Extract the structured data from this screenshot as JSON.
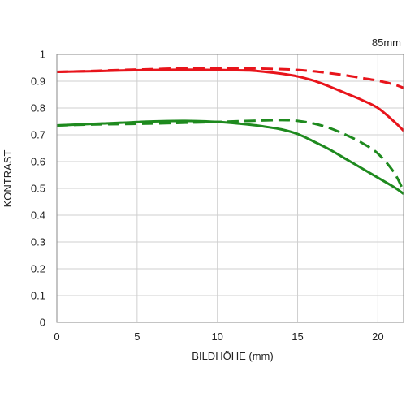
{
  "chart_data": {
    "type": "line",
    "title": "",
    "annotation": "85mm",
    "xlabel": "BILDHÖHE (mm)",
    "ylabel": "KONTRAST",
    "xlim": [
      0,
      21.6
    ],
    "ylim": [
      0,
      1
    ],
    "xticks": [
      0,
      5,
      10,
      15,
      20
    ],
    "yticks": [
      0,
      0.1,
      0.2,
      0.3,
      0.4,
      0.5,
      0.6,
      0.7,
      0.8,
      0.9,
      1
    ],
    "ytick_labels": [
      "0",
      "0.1",
      "0.2",
      "0.3",
      "0.4",
      "0.5",
      "0.6",
      "0.7",
      "0.8",
      "0.9",
      "1"
    ],
    "grid": true,
    "legend": "none",
    "series": [
      {
        "color": "#e8141b",
        "dash": "solid",
        "x": [
          0,
          2,
          4,
          6,
          8,
          10,
          12,
          13,
          14,
          15,
          16,
          17,
          18,
          19,
          20,
          21,
          21.6
        ],
        "y": [
          0.935,
          0.937,
          0.94,
          0.942,
          0.943,
          0.942,
          0.94,
          0.935,
          0.928,
          0.918,
          0.902,
          0.88,
          0.855,
          0.83,
          0.8,
          0.75,
          0.715
        ]
      },
      {
        "color": "#e8141b",
        "dash": "dashed",
        "x": [
          0,
          2,
          4,
          6,
          8,
          10,
          12,
          14,
          15,
          16,
          17,
          18,
          19,
          20,
          21,
          21.6
        ],
        "y": [
          0.935,
          0.938,
          0.942,
          0.945,
          0.948,
          0.948,
          0.948,
          0.945,
          0.942,
          0.937,
          0.93,
          0.922,
          0.912,
          0.902,
          0.888,
          0.875
        ]
      },
      {
        "color": "#1e8a1e",
        "dash": "solid",
        "x": [
          0,
          2,
          4,
          6,
          8,
          10,
          12,
          13,
          14,
          15,
          16,
          17,
          18,
          19,
          20,
          21,
          21.6
        ],
        "y": [
          0.735,
          0.74,
          0.745,
          0.75,
          0.752,
          0.748,
          0.738,
          0.73,
          0.72,
          0.703,
          0.675,
          0.645,
          0.61,
          0.575,
          0.54,
          0.505,
          0.48
        ]
      },
      {
        "color": "#1e8a1e",
        "dash": "dashed",
        "x": [
          0,
          2,
          4,
          6,
          8,
          10,
          12,
          14,
          15,
          16,
          17,
          18,
          19,
          20,
          21,
          21.6
        ],
        "y": [
          0.735,
          0.738,
          0.74,
          0.742,
          0.745,
          0.748,
          0.752,
          0.755,
          0.752,
          0.742,
          0.725,
          0.7,
          0.67,
          0.63,
          0.56,
          0.49
        ]
      }
    ]
  }
}
